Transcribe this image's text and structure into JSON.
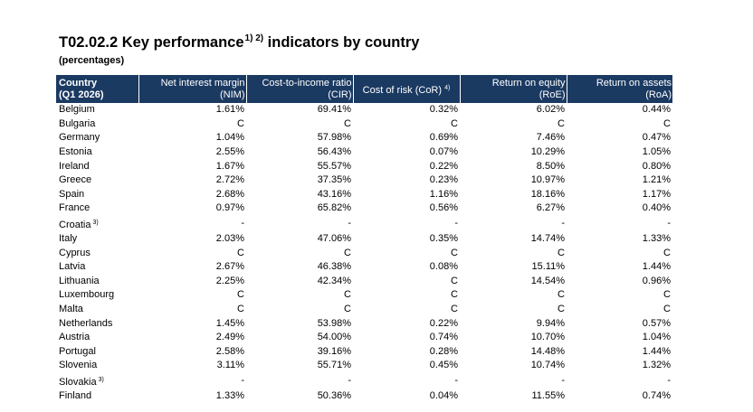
{
  "title": {
    "text": "T02.02.2 Key performance",
    "sup": "1) 2)",
    "suffix": " indicators by country"
  },
  "subtitle": "(percentages)",
  "headers": {
    "country_line1": "Country",
    "country_line2": "(Q1 2026)",
    "nim_line1": "Net interest margin",
    "nim_line2": "(NIM)",
    "cir_line1": "Cost-to-income ratio",
    "cir_line2": "(CIR)",
    "cor": "Cost of risk (CoR)",
    "cor_sup": "4)",
    "roe_line1": "Return on equity",
    "roe_line2": "(RoE)",
    "roa_line1": "Return on assets",
    "roa_line2": "(RoA)"
  },
  "rows": [
    {
      "country": "Belgium",
      "note": "",
      "nim": "1.61%",
      "cir": "69.41%",
      "cor": "0.32%",
      "roe": "6.02%",
      "roa": "0.44%"
    },
    {
      "country": "Bulgaria",
      "note": "",
      "nim": "C",
      "cir": "C",
      "cor": "C",
      "roe": "C",
      "roa": "C"
    },
    {
      "country": "Germany",
      "note": "",
      "nim": "1.04%",
      "cir": "57.98%",
      "cor": "0.69%",
      "roe": "7.46%",
      "roa": "0.47%"
    },
    {
      "country": "Estonia",
      "note": "",
      "nim": "2.55%",
      "cir": "56.43%",
      "cor": "0.07%",
      "roe": "10.29%",
      "roa": "1.05%"
    },
    {
      "country": "Ireland",
      "note": "",
      "nim": "1.67%",
      "cir": "55.57%",
      "cor": "0.22%",
      "roe": "8.50%",
      "roa": "0.80%"
    },
    {
      "country": "Greece",
      "note": "",
      "nim": "2.72%",
      "cir": "37.35%",
      "cor": "0.23%",
      "roe": "10.97%",
      "roa": "1.21%"
    },
    {
      "country": "Spain",
      "note": "",
      "nim": "2.68%",
      "cir": "43.16%",
      "cor": "1.16%",
      "roe": "18.16%",
      "roa": "1.17%"
    },
    {
      "country": "France",
      "note": "",
      "nim": "0.97%",
      "cir": "65.82%",
      "cor": "0.56%",
      "roe": "6.27%",
      "roa": "0.40%"
    },
    {
      "country": "Croatia",
      "note": "3)",
      "nim": "-",
      "cir": "-",
      "cor": "-",
      "roe": "-",
      "roa": "-"
    },
    {
      "country": "Italy",
      "note": "",
      "nim": "2.03%",
      "cir": "47.06%",
      "cor": "0.35%",
      "roe": "14.74%",
      "roa": "1.33%"
    },
    {
      "country": "Cyprus",
      "note": "",
      "nim": "C",
      "cir": "C",
      "cor": "C",
      "roe": "C",
      "roa": "C"
    },
    {
      "country": "Latvia",
      "note": "",
      "nim": "2.67%",
      "cir": "46.38%",
      "cor": "0.08%",
      "roe": "15.11%",
      "roa": "1.44%"
    },
    {
      "country": "Lithuania",
      "note": "",
      "nim": "2.25%",
      "cir": "42.34%",
      "cor": "C",
      "roe": "14.54%",
      "roa": "0.96%"
    },
    {
      "country": "Luxembourg",
      "note": "",
      "nim": "C",
      "cir": "C",
      "cor": "C",
      "roe": "C",
      "roa": "C"
    },
    {
      "country": "Malta",
      "note": "",
      "nim": "C",
      "cir": "C",
      "cor": "C",
      "roe": "C",
      "roa": "C"
    },
    {
      "country": "Netherlands",
      "note": "",
      "nim": "1.45%",
      "cir": "53.98%",
      "cor": "0.22%",
      "roe": "9.94%",
      "roa": "0.57%"
    },
    {
      "country": "Austria",
      "note": "",
      "nim": "2.49%",
      "cir": "54.00%",
      "cor": "0.74%",
      "roe": "10.70%",
      "roa": "1.04%"
    },
    {
      "country": "Portugal",
      "note": "",
      "nim": "2.58%",
      "cir": "39.16%",
      "cor": "0.28%",
      "roe": "14.48%",
      "roa": "1.44%"
    },
    {
      "country": "Slovenia",
      "note": "",
      "nim": "3.11%",
      "cir": "55.71%",
      "cor": "0.45%",
      "roe": "10.74%",
      "roa": "1.32%"
    },
    {
      "country": "Slovakia",
      "note": "3)",
      "nim": "-",
      "cir": "-",
      "cor": "-",
      "roe": "-",
      "roa": "-"
    },
    {
      "country": "Finland",
      "note": "",
      "nim": "1.33%",
      "cir": "50.36%",
      "cor": "0.04%",
      "roe": "11.55%",
      "roa": "0.74%"
    }
  ],
  "colors": {
    "header_bg": "#1b3a62",
    "header_text": "#ffffff"
  }
}
